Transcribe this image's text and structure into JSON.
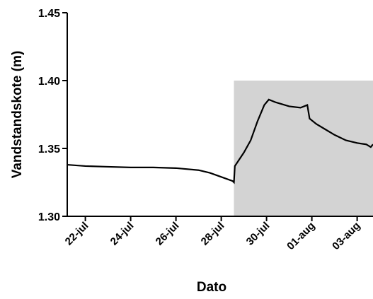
{
  "chart_data": {
    "type": "line",
    "x_label": "Dato",
    "y_label": "Vandstandskote (m)",
    "xlim": [
      21.2,
      34.7
    ],
    "ylim": [
      1.3,
      1.45
    ],
    "xticks": [
      {
        "value": 22,
        "label": "22-jul"
      },
      {
        "value": 24,
        "label": "24-jul"
      },
      {
        "value": 26,
        "label": "26-jul"
      },
      {
        "value": 28,
        "label": "28-jul"
      },
      {
        "value": 30,
        "label": "30-jul"
      },
      {
        "value": 32,
        "label": "01-aug"
      },
      {
        "value": 34,
        "label": "03-aug"
      }
    ],
    "yticks": [
      {
        "value": 1.3,
        "label": "1.30"
      },
      1.35,
      {
        "value": 1.4,
        "label": "1.40"
      },
      1.45
    ],
    "shaded_region": {
      "x": [
        28.56,
        34.7
      ],
      "y": [
        1.3,
        1.4
      ],
      "color": "#d3d3d3"
    },
    "series": [
      {
        "name": "Vandstandskote",
        "color": "#000000",
        "x": [
          21.2,
          22,
          23,
          24,
          25,
          26,
          27,
          27.5,
          28,
          28.5,
          28.56,
          28.6,
          28.8,
          29,
          29.3,
          29.6,
          29.9,
          30.1,
          30.4,
          31,
          31.5,
          31.8,
          31.9,
          32.2,
          32.6,
          33,
          33.5,
          34,
          34.4,
          34.6,
          34.7
        ],
        "values": [
          1.338,
          1.337,
          1.3365,
          1.336,
          1.336,
          1.3355,
          1.334,
          1.332,
          1.329,
          1.326,
          1.325,
          1.337,
          1.342,
          1.347,
          1.356,
          1.37,
          1.382,
          1.386,
          1.384,
          1.381,
          1.38,
          1.382,
          1.372,
          1.368,
          1.364,
          1.36,
          1.356,
          1.354,
          1.353,
          1.351,
          1.353
        ]
      }
    ]
  }
}
